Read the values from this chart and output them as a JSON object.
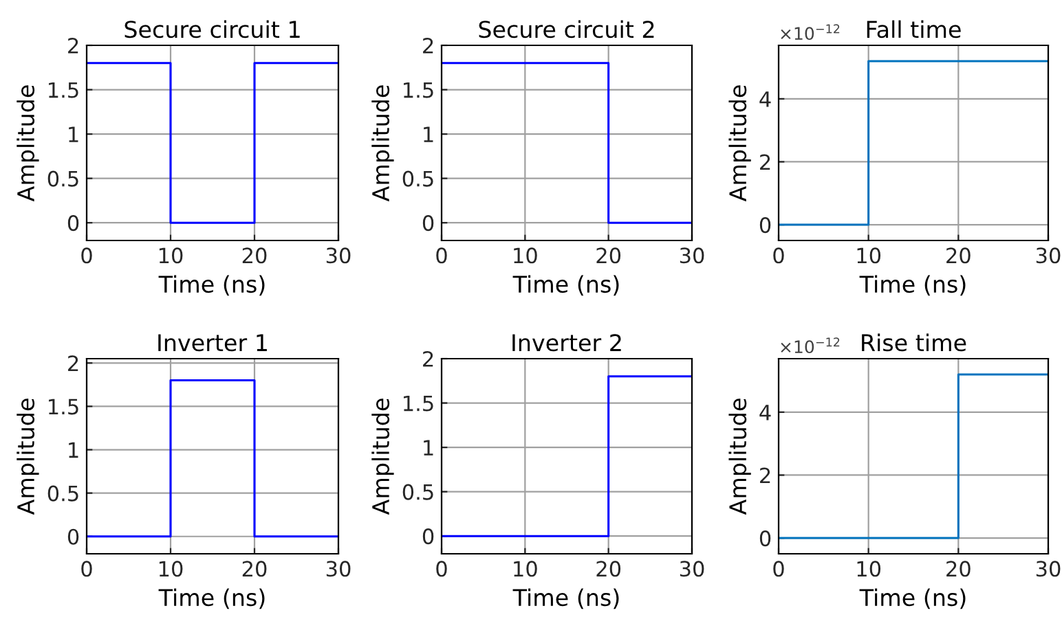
{
  "chart_data": [
    {
      "type": "step",
      "title": "Secure circuit 1",
      "xlabel": "Time (ns)",
      "ylabel": "Amplitude",
      "x": [
        0,
        10,
        20,
        30
      ],
      "series": [
        {
          "color": "#0000ff",
          "values": [
            1.8,
            0,
            1.8,
            1.8
          ]
        }
      ],
      "xlim": [
        0,
        30
      ],
      "xticks": [
        0,
        10,
        20,
        30
      ],
      "ylim": [
        -0.2,
        2
      ],
      "yticks": [
        0,
        0.5,
        1,
        1.5,
        2
      ],
      "grid": true
    },
    {
      "type": "step",
      "title": "Secure circuit 2",
      "xlabel": "Time (ns)",
      "ylabel": "Amplitude",
      "x": [
        0,
        10,
        20,
        30
      ],
      "series": [
        {
          "color": "#0000ff",
          "values": [
            1.8,
            1.8,
            0,
            0
          ]
        }
      ],
      "xlim": [
        0,
        30
      ],
      "xticks": [
        0,
        10,
        20,
        30
      ],
      "ylim": [
        -0.2,
        2
      ],
      "yticks": [
        0,
        0.5,
        1,
        1.5,
        2
      ],
      "grid": true
    },
    {
      "type": "step",
      "title": "Fall time",
      "xlabel": "Time (ns)",
      "ylabel": "Amplitude",
      "annotations": [
        "×10$^{−12}$"
      ],
      "x": [
        0,
        10,
        20,
        30
      ],
      "series": [
        {
          "color": "#0072bd",
          "values": [
            0,
            5.2,
            5.2,
            5.2
          ]
        }
      ],
      "xlim": [
        0,
        30
      ],
      "xticks": [
        0,
        10,
        20,
        30
      ],
      "ylim": [
        -0.5,
        5.7
      ],
      "yticks": [
        0,
        2,
        4
      ],
      "grid": true
    },
    {
      "type": "step",
      "title": "Inverter 1",
      "xlabel": "Time (ns)",
      "ylabel": "Amplitude",
      "x": [
        0,
        10,
        20,
        30
      ],
      "series": [
        {
          "color": "#0000ff",
          "values": [
            0,
            1.8,
            0,
            0
          ]
        }
      ],
      "xlim": [
        0,
        30
      ],
      "xticks": [
        0,
        10,
        20,
        30
      ],
      "ylim": [
        -0.2,
        2.05
      ],
      "yticks": [
        0,
        0.5,
        1,
        1.5,
        2
      ],
      "grid": true
    },
    {
      "type": "step",
      "title": "Inverter 2",
      "xlabel": "Time (ns)",
      "ylabel": "Amplitude",
      "x": [
        0,
        10,
        20,
        30
      ],
      "series": [
        {
          "color": "#0000ff",
          "values": [
            0,
            0,
            1.8,
            1.8
          ]
        }
      ],
      "xlim": [
        0,
        30
      ],
      "xticks": [
        0,
        10,
        20,
        30
      ],
      "ylim": [
        -0.2,
        2
      ],
      "yticks": [
        0,
        0.5,
        1,
        1.5,
        2
      ],
      "grid": true
    },
    {
      "type": "step",
      "title": "Rise time",
      "xlabel": "Time (ns)",
      "ylabel": "Amplitude",
      "annotations": [
        "×10$^{−12}$"
      ],
      "x": [
        0,
        10,
        20,
        30
      ],
      "series": [
        {
          "color": "#0072bd",
          "values": [
            0,
            0,
            5.2,
            5.2
          ]
        }
      ],
      "xlim": [
        0,
        30
      ],
      "xticks": [
        0,
        10,
        20,
        30
      ],
      "ylim": [
        -0.5,
        5.7
      ],
      "yticks": [
        0,
        2,
        4
      ],
      "grid": true
    }
  ]
}
